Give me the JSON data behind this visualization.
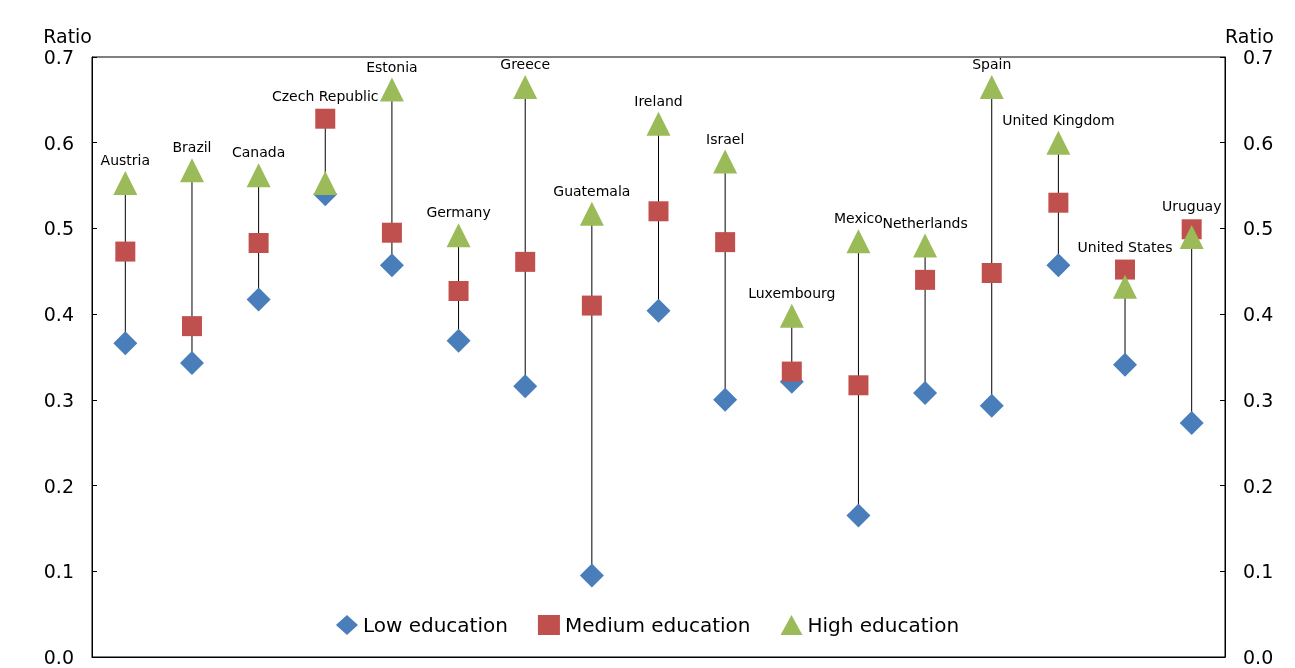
{
  "chart_data": {
    "type": "scatter",
    "ylabel": "Ratio",
    "y2label": "Ratio",
    "categories": [
      "Austria",
      "Brazil",
      "Canada",
      "Czech Republic",
      "Estonia",
      "Germany",
      "Greece",
      "Guatemala",
      "Ireland",
      "Israel",
      "Luxembourg",
      "Mexico",
      "Netherlands",
      "Spain",
      "United Kingdom",
      "United States",
      "Uruguay"
    ],
    "series": [
      {
        "name": "Low education",
        "color": "#4a7ebb",
        "marker": "diamond",
        "values": [
          0.366,
          0.343,
          0.417,
          0.54,
          0.457,
          0.369,
          0.316,
          0.095,
          0.404,
          0.3,
          0.321,
          0.165,
          0.308,
          0.293,
          0.457,
          0.341,
          0.273
        ]
      },
      {
        "name": "Medium education",
        "color": "#c0504d",
        "marker": "square",
        "values": [
          0.473,
          0.386,
          0.483,
          0.628,
          0.495,
          0.427,
          0.461,
          0.41,
          0.52,
          0.484,
          0.333,
          0.317,
          0.44,
          0.448,
          0.53,
          0.452,
          0.499
        ]
      },
      {
        "name": "High education",
        "color": "#9bbb59",
        "marker": "triangle",
        "values": [
          0.553,
          0.568,
          0.562,
          0.553,
          0.662,
          0.492,
          0.665,
          0.517,
          0.622,
          0.578,
          0.398,
          0.485,
          0.48,
          0.665,
          0.6,
          0.432,
          0.49
        ]
      }
    ],
    "ylim": [
      0,
      0.7
    ],
    "yticks": [
      {
        "value": 0,
        "label": "0.0"
      },
      0.1,
      0.2,
      0.3,
      0.4,
      0.5,
      0.6,
      0.7
    ],
    "y2lim": [
      0,
      0.7
    ],
    "y2ticks": [
      {
        "value": 0,
        "label": "0.0"
      },
      0.1,
      0.2,
      0.3,
      0.4,
      0.5,
      0.6,
      0.7
    ],
    "grid": false,
    "legend": "bottom"
  }
}
